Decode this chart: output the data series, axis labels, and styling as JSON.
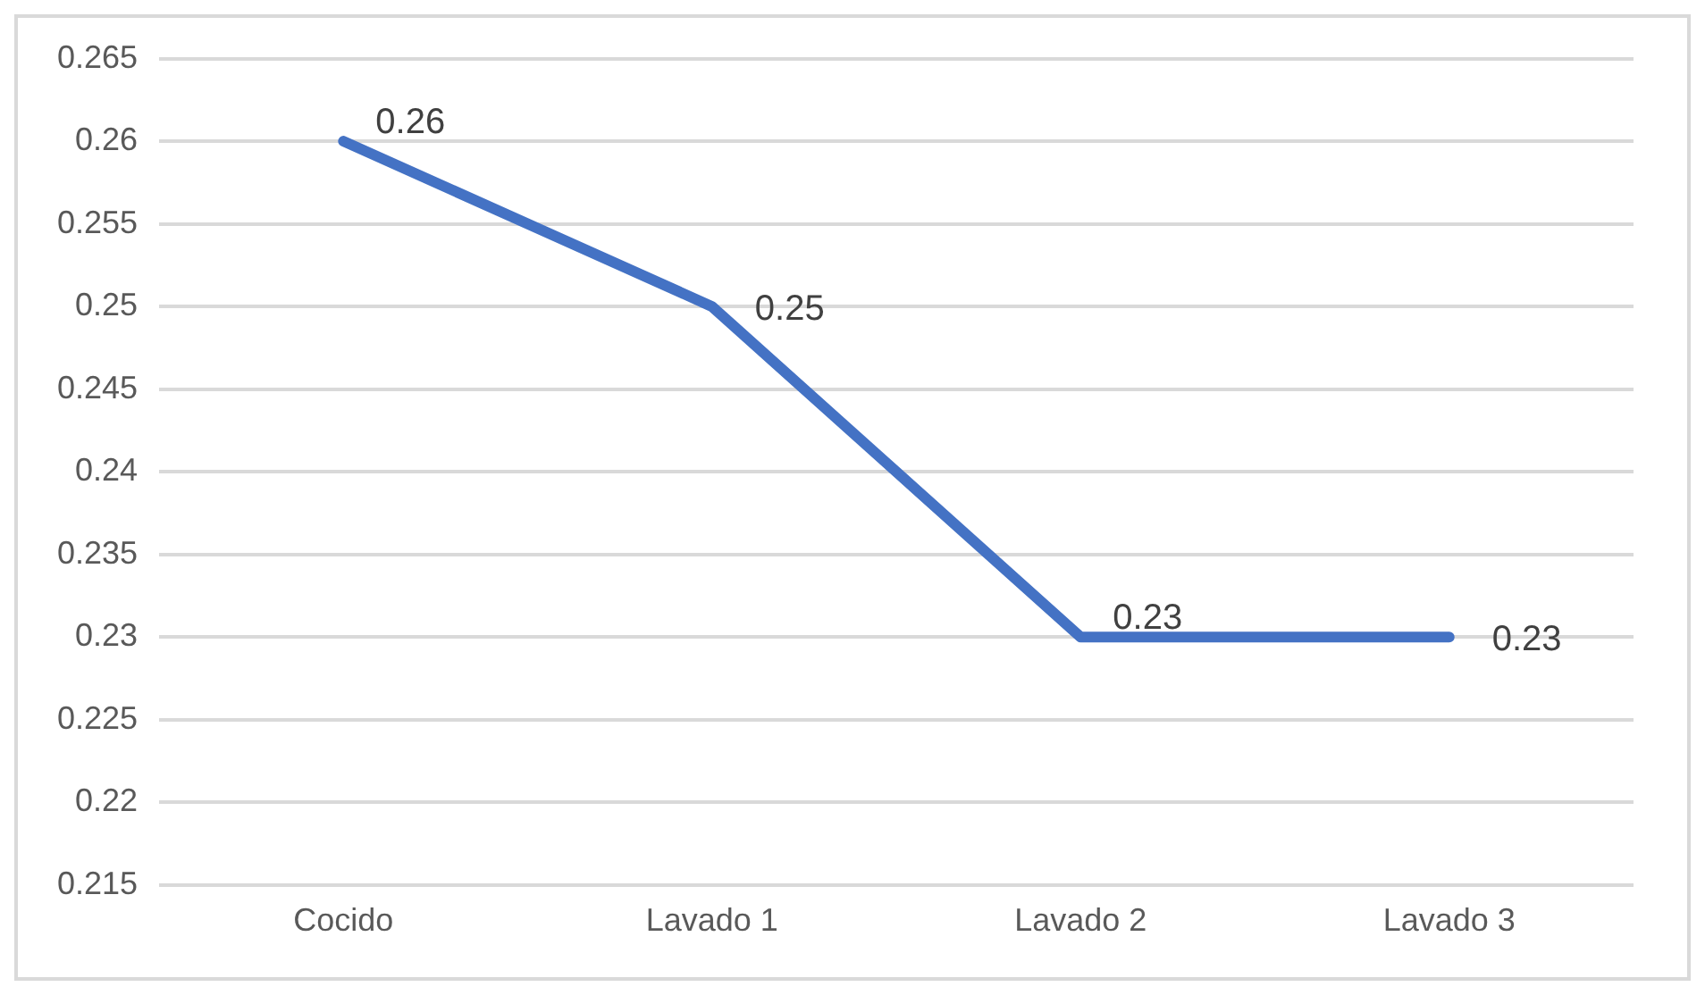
{
  "chart_data": {
    "type": "line",
    "categories": [
      "Cocido",
      "Lavado 1",
      "Lavado 2",
      "Lavado 3"
    ],
    "series": [
      {
        "color": "#4472c4",
        "values": [
          0.26,
          0.25,
          0.23,
          0.23
        ]
      }
    ],
    "ylim": [
      0.215,
      0.265
    ],
    "yticks": [
      0.215,
      0.22,
      0.225,
      0.23,
      0.235,
      0.24,
      0.245,
      0.25,
      0.255,
      0.26,
      0.265
    ],
    "grid": "y",
    "legend": false,
    "marker": "none",
    "line_style": "solid",
    "data_labels": true
  }
}
